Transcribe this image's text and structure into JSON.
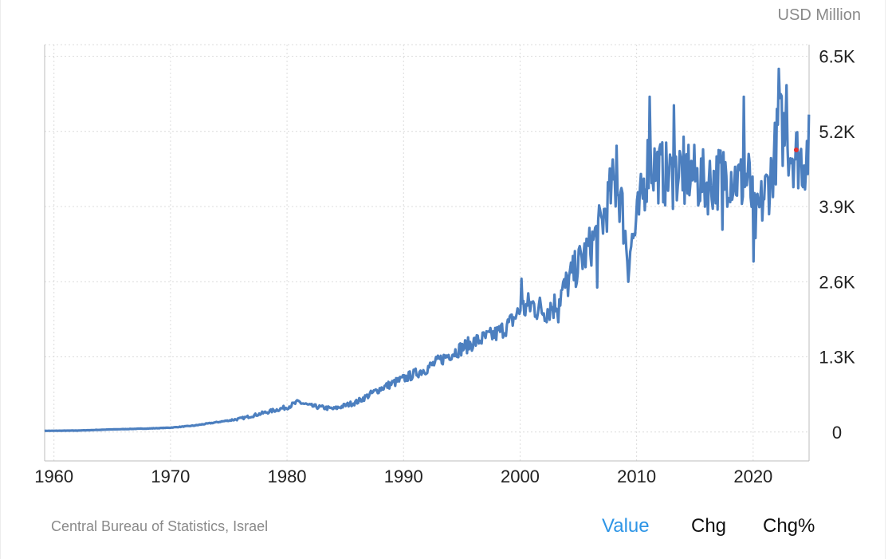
{
  "unit_label": "USD Million",
  "source": "Central Bureau of Statistics, Israel",
  "tabs": [
    {
      "label": "Value",
      "active": true
    },
    {
      "label": "Chg",
      "active": false
    },
    {
      "label": "Chg%",
      "active": false
    }
  ],
  "colors": {
    "line": "#4c7fbf",
    "last_point": "#e03030",
    "grid": "#dcdcdc",
    "active_tab": "#2e95e6"
  },
  "chart_data": {
    "type": "line",
    "title": "",
    "xlabel": "",
    "ylabel": "USD Million",
    "xlim": [
      1959.2,
      2024.8
    ],
    "ylim": [
      -500,
      6700
    ],
    "x_ticks": [
      1960,
      1970,
      1980,
      1990,
      2000,
      2010,
      2020
    ],
    "x_tick_labels": [
      "1960",
      "1970",
      "1980",
      "1990",
      "2000",
      "2010",
      "2020"
    ],
    "y_ticks": [
      0,
      1300,
      2600,
      3900,
      5200,
      6500
    ],
    "y_tick_labels": [
      "0",
      "1.3K",
      "2.6K",
      "3.9K",
      "5.2K",
      "6.5K"
    ],
    "grid": true,
    "frequency": "monthly",
    "anchors": [
      [
        1959.2,
        20
      ],
      [
        1962,
        25
      ],
      [
        1965,
        45
      ],
      [
        1968,
        60
      ],
      [
        1970,
        75
      ],
      [
        1972,
        110
      ],
      [
        1974,
        170
      ],
      [
        1976,
        230
      ],
      [
        1978,
        330
      ],
      [
        1980,
        430
      ],
      [
        1981,
        520
      ],
      [
        1982,
        450
      ],
      [
        1984,
        400
      ],
      [
        1986,
        520
      ],
      [
        1988,
        750
      ],
      [
        1990,
        920
      ],
      [
        1992,
        1100
      ],
      [
        1994,
        1350
      ],
      [
        1996,
        1550
      ],
      [
        1998,
        1700
      ],
      [
        1999,
        1850
      ],
      [
        2000,
        2100
      ],
      [
        2001,
        2200
      ],
      [
        2002,
        2100
      ],
      [
        2003,
        2200
      ],
      [
        2004,
        2550
      ],
      [
        2005,
        2900
      ],
      [
        2006,
        3200
      ],
      [
        2007,
        3600
      ],
      [
        2008,
        4300
      ],
      [
        2008.6,
        4100
      ],
      [
        2009.2,
        3100
      ],
      [
        2009.8,
        3400
      ],
      [
        2010.5,
        4100
      ],
      [
        2011,
        4700
      ],
      [
        2012,
        4500
      ],
      [
        2013,
        4400
      ],
      [
        2014,
        4600
      ],
      [
        2015,
        4400
      ],
      [
        2016,
        4300
      ],
      [
        2017,
        4400
      ],
      [
        2018,
        4500
      ],
      [
        2019,
        4300
      ],
      [
        2019.6,
        4400
      ],
      [
        2020.2,
        3600
      ],
      [
        2020.8,
        4000
      ],
      [
        2021.5,
        4400
      ],
      [
        2022.3,
        5300
      ],
      [
        2022.8,
        5100
      ],
      [
        2023.2,
        4900
      ],
      [
        2023.7,
        4800
      ],
      [
        2024.3,
        4700
      ],
      [
        2024.8,
        4900
      ]
    ],
    "spikes": [
      [
        2000.1,
        2650
      ],
      [
        2003.3,
        1900
      ],
      [
        2006.6,
        2500
      ],
      [
        2008.3,
        4950
      ],
      [
        2009.3,
        2600
      ],
      [
        2011.1,
        5800
      ],
      [
        2013.2,
        5650
      ],
      [
        2014.1,
        3950
      ],
      [
        2017.4,
        3500
      ],
      [
        2019.2,
        5800
      ],
      [
        2020.05,
        2950
      ],
      [
        2022.2,
        6280
      ],
      [
        2022.9,
        6000
      ]
    ],
    "last_point": [
      2023.7,
      4880
    ]
  }
}
